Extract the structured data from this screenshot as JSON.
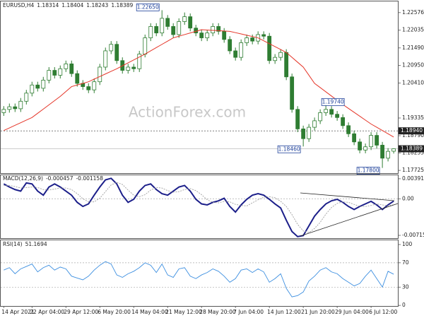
{
  "chart_data": [
    {
      "type": "candlestick",
      "title": "EURUSD,H4",
      "watermark": "ActionForex.com",
      "color": "#2f7d32",
      "xlim": [
        -0.6,
        69.8
      ],
      "open": [
        1.195,
        1.196,
        1.1968,
        1.1962,
        1.1985,
        1.201,
        1.2035,
        1.2025,
        1.205,
        1.208,
        1.2065,
        1.2085,
        1.21,
        1.207,
        1.204,
        1.203,
        1.202,
        1.2045,
        1.209,
        1.214,
        1.216,
        1.211,
        1.208,
        1.209,
        1.2085,
        1.213,
        1.218,
        1.2215,
        1.2195,
        1.224,
        1.2215,
        1.219,
        1.223,
        1.2245,
        1.221,
        1.2195,
        1.218,
        1.2195,
        1.2215,
        1.22,
        1.2175,
        1.214,
        1.212,
        1.2165,
        1.218,
        1.217,
        1.219,
        1.2185,
        1.211,
        1.212,
        1.2135,
        1.206,
        1.196,
        1.19,
        1.187,
        1.1905,
        1.1925,
        1.195,
        1.196,
        1.1945,
        1.1935,
        1.191,
        1.1885,
        1.186,
        1.1835,
        1.1845,
        1.188,
        1.185,
        1.181,
        1.18314
      ],
      "high": [
        1.197,
        1.1978,
        1.1978,
        1.1995,
        1.202,
        1.2045,
        1.2045,
        1.206,
        1.209,
        1.209,
        1.2095,
        1.211,
        1.211,
        1.208,
        1.205,
        1.204,
        1.2055,
        1.21,
        1.215,
        1.217,
        1.217,
        1.212,
        1.21,
        1.21,
        1.214,
        1.219,
        1.2225,
        1.2225,
        1.2265,
        1.225,
        1.2225,
        1.224,
        1.2258,
        1.2255,
        1.222,
        1.2205,
        1.2205,
        1.2225,
        1.2225,
        1.221,
        1.2185,
        1.215,
        1.2175,
        1.219,
        1.219,
        1.22,
        1.22,
        1.2195,
        1.213,
        1.2145,
        1.2145,
        1.207,
        1.197,
        1.191,
        1.1915,
        1.1935,
        1.196,
        1.1974,
        1.197,
        1.1955,
        1.1945,
        1.192,
        1.1895,
        1.187,
        1.1855,
        1.189,
        1.189,
        1.186,
        1.1841,
        1.18404
      ],
      "low": [
        1.194,
        1.195,
        1.1952,
        1.1952,
        1.1975,
        1.2,
        1.2015,
        1.2015,
        1.204,
        1.2055,
        1.2055,
        1.2075,
        1.206,
        1.203,
        1.202,
        1.201,
        1.201,
        1.2035,
        1.208,
        1.213,
        1.21,
        1.207,
        1.207,
        1.2075,
        1.2075,
        1.212,
        1.217,
        1.2185,
        1.2185,
        1.2205,
        1.218,
        1.218,
        1.222,
        1.22,
        1.2185,
        1.217,
        1.217,
        1.2185,
        1.219,
        1.2165,
        1.213,
        1.211,
        1.211,
        1.2155,
        1.216,
        1.216,
        1.2175,
        1.21,
        1.21,
        1.211,
        1.205,
        1.195,
        1.189,
        1.1846,
        1.186,
        1.1895,
        1.1915,
        1.194,
        1.1935,
        1.1925,
        1.19,
        1.1875,
        1.185,
        1.1825,
        1.1825,
        1.1835,
        1.184,
        1.178,
        1.18,
        1.18243
      ],
      "close": [
        1.196,
        1.1968,
        1.1962,
        1.1985,
        1.201,
        1.2035,
        1.2025,
        1.205,
        1.208,
        1.2065,
        1.2085,
        1.21,
        1.207,
        1.204,
        1.203,
        1.202,
        1.2045,
        1.209,
        1.214,
        1.216,
        1.211,
        1.208,
        1.209,
        1.2085,
        1.213,
        1.218,
        1.2215,
        1.2195,
        1.224,
        1.2215,
        1.219,
        1.223,
        1.2245,
        1.221,
        1.2195,
        1.218,
        1.2195,
        1.2215,
        1.22,
        1.2175,
        1.214,
        1.212,
        1.2165,
        1.218,
        1.217,
        1.219,
        1.2185,
        1.211,
        1.212,
        1.2135,
        1.206,
        1.196,
        1.19,
        1.187,
        1.1905,
        1.1925,
        1.195,
        1.196,
        1.1945,
        1.1935,
        1.191,
        1.1885,
        1.186,
        1.1835,
        1.1845,
        1.188,
        1.185,
        1.181,
        1.1831,
        1.18389
      ],
      "ma": {
        "color": "#e53528",
        "values": [
          1.1895,
          1.1903,
          1.1911,
          1.1919,
          1.1927,
          1.1935,
          1.1948,
          1.1961,
          1.1974,
          1.1987,
          1.2,
          1.2015,
          1.203,
          1.2035,
          1.204,
          1.2045,
          1.2053,
          1.2061,
          1.2069,
          1.2077,
          1.2085,
          1.2094,
          1.2103,
          1.2112,
          1.2121,
          1.213,
          1.214,
          1.215,
          1.216,
          1.217,
          1.218,
          1.2185,
          1.219,
          1.2195,
          1.22,
          1.2205,
          1.2204,
          1.2203,
          1.2202,
          1.2201,
          1.22,
          1.2196,
          1.2192,
          1.2188,
          1.2184,
          1.218,
          1.2171,
          1.2162,
          1.2153,
          1.2144,
          1.2135,
          1.212,
          1.2105,
          1.209,
          1.2065,
          1.204,
          1.2027,
          1.2014,
          1.2001,
          1.1988,
          1.1975,
          1.1963,
          1.1951,
          1.1939,
          1.1927,
          1.1915,
          1.1905,
          1.1895,
          1.1885,
          1.1875
        ]
      },
      "ylim": [
        1.1764,
        1.2292
      ],
      "yticks": [
        1.22576,
        1.22035,
        {
          "value": 1.2149,
          "label": "1.21490"
        },
        {
          "value": 1.2095,
          "label": "1.20950"
        },
        {
          "value": 1.2041,
          "label": "1.20410"
        },
        1.19335,
        {
          "value": 1.1879,
          "label": "1.18790"
        },
        1.18255,
        1.17725
      ],
      "levels": [
        {
          "value": 1.1894,
          "label": "1.18940"
        }
      ],
      "annotations": [
        {
          "value": 1.2265,
          "label": "1.22650"
        },
        {
          "value": 1.1974,
          "label": "1.19740"
        },
        {
          "value": 1.1846,
          "label": "1.18460"
        },
        {
          "value": 1.178,
          "label": "1.17800"
        }
      ]
    },
    {
      "type": "macd",
      "title": "MACD(12,26,9)",
      "series": [
        {
          "color": "#1c1f8a",
          "values": [
            0.0029,
            0.0023,
            0.0018,
            0.0015,
            0.0031,
            0.0029,
            0.0015,
            0.0007,
            0.0023,
            0.0029,
            0.0023,
            0.0015,
            0.0007,
            -0.0007,
            -0.0015,
            -0.001,
            0.0007,
            0.0023,
            0.0037,
            0.004,
            0.0029,
            0.0007,
            -0.0007,
            -0.0001,
            0.0015,
            0.0026,
            0.0029,
            0.0018,
            0.001,
            0.0007,
            0.0015,
            0.0023,
            0.0026,
            0.0015,
            -0.0001,
            -0.001,
            -0.0012,
            -0.0007,
            -0.0004,
            0.0001,
            -0.0015,
            -0.0026,
            -0.0012,
            -0.0001,
            0.0007,
            0.001,
            0.0007,
            -0.0001,
            -0.001,
            -0.0018,
            -0.0042,
            -0.0064,
            -0.0074,
            -0.0072,
            -0.0053,
            -0.0034,
            -0.0021,
            -0.001,
            -0.0004,
            -0.0001,
            -0.0007,
            -0.0015,
            -0.0021,
            -0.0015,
            -0.001,
            -0.0005,
            -0.0012,
            -0.0021,
            -0.0012,
            -0.000457
          ]
        },
        {
          "color": "#a0a0a0",
          "values": [
            0.0026,
            0.0026,
            0.0024,
            0.0021,
            0.0022,
            0.0023,
            0.0022,
            0.0018,
            0.0017,
            0.0019,
            0.0021,
            0.0021,
            0.0018,
            0.001,
            0.0,
            -0.0006,
            -0.0006,
            0.0001,
            0.0014,
            0.0027,
            0.0032,
            0.0028,
            0.0017,
            0.0007,
            0.0004,
            0.0008,
            0.0017,
            0.0022,
            0.0021,
            0.0016,
            0.0013,
            0.0014,
            0.0018,
            0.002,
            0.0016,
            0.0008,
            -0.0002,
            -0.0007,
            -0.0008,
            -0.0005,
            -0.0006,
            -0.0011,
            -0.0013,
            -0.0014,
            -0.0008,
            -0.0002,
            0.0003,
            0.0004,
            0.0002,
            -0.0005,
            -0.0015,
            -0.0031,
            -0.005,
            -0.0063,
            -0.0066,
            -0.0058,
            -0.0046,
            -0.003,
            -0.0017,
            -0.0009,
            -0.0006,
            -0.0007,
            -0.0011,
            -0.0015,
            -0.0015,
            -0.0013,
            -0.001,
            -0.0012,
            -0.0014,
            -0.001158
          ]
        }
      ],
      "ylim": [
        -0.0077,
        0.0046
      ],
      "yticks": [
        0.003917,
        {
          "value": 0,
          "label": "0.00"
        },
        -0.007152
      ],
      "levels": [
        0
      ]
    },
    {
      "type": "rsi",
      "title": "RSI(14)",
      "color": "#3d8fe0",
      "values": [
        58,
        62,
        52,
        60,
        64,
        68,
        55,
        62,
        66,
        58,
        63,
        60,
        48,
        45,
        42,
        48,
        58,
        66,
        72,
        68,
        50,
        46,
        52,
        56,
        62,
        70,
        66,
        54,
        68,
        50,
        46,
        60,
        62,
        48,
        44,
        50,
        54,
        60,
        56,
        48,
        38,
        44,
        58,
        60,
        54,
        60,
        55,
        38,
        44,
        52,
        28,
        14,
        16,
        22,
        40,
        48,
        58,
        62,
        55,
        52,
        44,
        38,
        32,
        36,
        48,
        58,
        44,
        30,
        56,
        51.1694
      ],
      "ylim": [
        -1,
        107
      ],
      "yticks": [
        100,
        70,
        30,
        0
      ],
      "levels": [
        70,
        30
      ],
      "xticks": [
        {
          "value": 0,
          "label": "14 Apr 2021"
        },
        {
          "value": 5,
          "label": "22 Apr 04:00"
        },
        {
          "value": 11,
          "label": "29 Apr 12:00"
        },
        {
          "value": 17,
          "label": "6 May 20:00"
        },
        {
          "value": 23,
          "label": "14 May 04:00"
        },
        {
          "value": 29,
          "label": "21 May 12:00"
        },
        {
          "value": 35,
          "label": "28 May 20:00"
        },
        {
          "value": 41,
          "label": "7 Jun 04:00"
        },
        {
          "value": 47,
          "label": "14 Jun 12:00"
        },
        {
          "value": 53,
          "label": "21 Jun 20:00"
        },
        {
          "value": 59,
          "label": "29 Jun 04:00"
        },
        {
          "value": 65,
          "label": "6 Jul 12:00"
        }
      ]
    }
  ]
}
